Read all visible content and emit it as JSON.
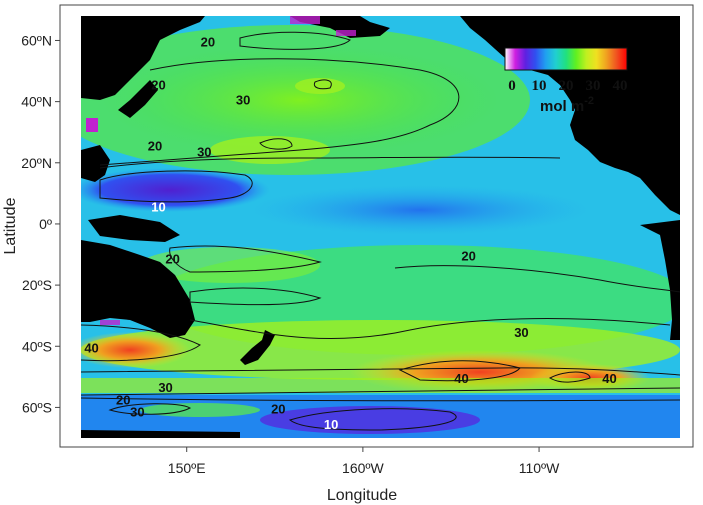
{
  "map": {
    "xlabel": "Longitude",
    "ylabel": "Latitude",
    "lat_ticks": [
      {
        "label": "60ºN",
        "value": 60
      },
      {
        "label": "40ºN",
        "value": 40
      },
      {
        "label": "20ºN",
        "value": 20
      },
      {
        "label": "0º",
        "value": 0
      },
      {
        "label": "20ºS",
        "value": -20
      },
      {
        "label": "40ºS",
        "value": -40
      },
      {
        "label": "60ºS",
        "value": -60
      }
    ],
    "lon_ticks": [
      {
        "label": "150ºE",
        "value": 150
      },
      {
        "label": "160ºW",
        "value": 200
      },
      {
        "label": "110ºW",
        "value": 250
      }
    ],
    "lon_range": [
      120,
      290
    ],
    "lat_range": [
      -70,
      68
    ],
    "colorbar": {
      "ticks": [
        "0",
        "10",
        "20",
        "30",
        "40"
      ],
      "range": [
        0,
        40
      ],
      "unit_base": "mol  m",
      "unit_exp": "-2",
      "colors": [
        "#ffffff",
        "#d020e0",
        "#6020e0",
        "#3050f0",
        "#20a0f0",
        "#20d0d0",
        "#20e080",
        "#60f020",
        "#c0f020",
        "#f0e020",
        "#f0a020",
        "#f05020",
        "#ff0000"
      ]
    },
    "contour_labels": [
      {
        "text": "20",
        "lon": 156,
        "lat": 58,
        "color": "#111111"
      },
      {
        "text": "20",
        "lon": 142,
        "lat": 44,
        "color": "#111111"
      },
      {
        "text": "30",
        "lon": 166,
        "lat": 39,
        "color": "#111111"
      },
      {
        "text": "20",
        "lon": 141,
        "lat": 24,
        "color": "#111111"
      },
      {
        "text": "30",
        "lon": 155,
        "lat": 22,
        "color": "#111111"
      },
      {
        "text": "10",
        "lon": 142,
        "lat": 4,
        "color": "#ffffff"
      },
      {
        "text": "20",
        "lon": 146,
        "lat": -13,
        "color": "#111111"
      },
      {
        "text": "20",
        "lon": 230,
        "lat": -12,
        "color": "#111111"
      },
      {
        "text": "30",
        "lon": 245,
        "lat": -37,
        "color": "#111111"
      },
      {
        "text": "40",
        "lon": 123,
        "lat": -42,
        "color": "#111111"
      },
      {
        "text": "40",
        "lon": 228,
        "lat": -52,
        "color": "#111111"
      },
      {
        "text": "40",
        "lon": 270,
        "lat": -52,
        "color": "#111111"
      },
      {
        "text": "30",
        "lon": 144,
        "lat": -55,
        "color": "#111111"
      },
      {
        "text": "20",
        "lon": 132,
        "lat": -59,
        "color": "#111111"
      },
      {
        "text": "30",
        "lon": 136,
        "lat": -63,
        "color": "#111111"
      },
      {
        "text": "20",
        "lon": 176,
        "lat": -62,
        "color": "#111111"
      },
      {
        "text": "10",
        "lon": 191,
        "lat": -67,
        "color": "#ffffff"
      }
    ]
  }
}
